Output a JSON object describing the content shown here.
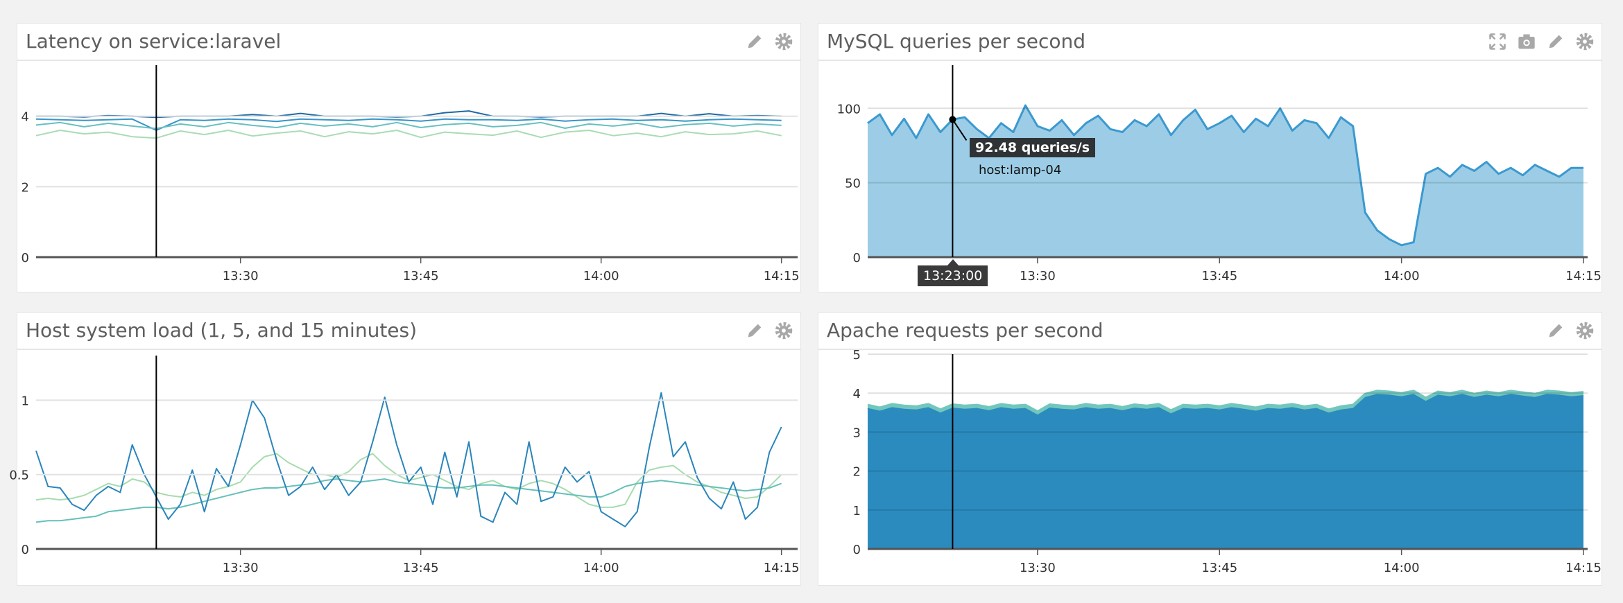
{
  "icons": {
    "edit": "pencil-icon",
    "settings": "gear-icon",
    "fullscreen": "expand-icon",
    "snapshot": "camera-icon"
  },
  "chart_data": [
    {
      "type": "line",
      "title": "Latency on service:laravel",
      "ylim": [
        0,
        5.45
      ],
      "yticks": [
        "0",
        "2",
        "4"
      ],
      "ytick_values": [
        0,
        2,
        4
      ],
      "xlim": [
        "13:13",
        "14:16"
      ],
      "xticks": [
        "13:30",
        "13:45",
        "14:00",
        "14:15"
      ],
      "grid": true,
      "cursor": "13:23",
      "start": "13:13",
      "interval_min": 2,
      "series": [
        {
          "color": "#1d6aa5",
          "values": [
            4.0,
            4.0,
            3.98,
            4.02,
            4.0,
            3.97,
            4.0,
            4.0,
            4.0,
            4.05,
            4.0,
            4.08,
            4.0,
            4.0,
            4.0,
            3.98,
            4.0,
            4.1,
            4.15,
            4.0,
            4.0,
            3.98,
            4.0,
            4.0,
            4.0,
            4.0,
            4.08,
            4.0,
            4.07,
            4.0,
            4.02,
            4.0
          ]
        },
        {
          "color": "#3795c8",
          "values": [
            3.92,
            3.9,
            3.88,
            3.9,
            3.92,
            3.6,
            3.9,
            3.88,
            3.92,
            3.9,
            3.85,
            3.92,
            3.9,
            3.88,
            3.92,
            3.9,
            3.86,
            3.92,
            3.9,
            3.9,
            3.88,
            3.92,
            3.86,
            3.9,
            3.92,
            3.88,
            3.9,
            3.86,
            3.9,
            3.92,
            3.9,
            3.88
          ]
        },
        {
          "color": "#68bfc1",
          "values": [
            3.75,
            3.82,
            3.7,
            3.8,
            3.72,
            3.65,
            3.78,
            3.7,
            3.82,
            3.74,
            3.68,
            3.8,
            3.72,
            3.78,
            3.7,
            3.82,
            3.68,
            3.76,
            3.8,
            3.7,
            3.74,
            3.82,
            3.66,
            3.78,
            3.72,
            3.8,
            3.68,
            3.76,
            3.8,
            3.72,
            3.78,
            3.74
          ]
        },
        {
          "color": "#a9dcb3",
          "values": [
            3.45,
            3.6,
            3.5,
            3.55,
            3.42,
            3.38,
            3.58,
            3.48,
            3.6,
            3.44,
            3.52,
            3.58,
            3.42,
            3.56,
            3.5,
            3.6,
            3.4,
            3.55,
            3.5,
            3.46,
            3.58,
            3.4,
            3.55,
            3.6,
            3.45,
            3.52,
            3.42,
            3.56,
            3.48,
            3.5,
            3.58,
            3.45
          ]
        }
      ]
    },
    {
      "type": "area",
      "title": "MySQL queries per second",
      "ylim": [
        0,
        129
      ],
      "yticks": [
        "0",
        "50",
        "100"
      ],
      "ytick_values": [
        0,
        50,
        100
      ],
      "xlim": [
        "13:16",
        "14:15"
      ],
      "xticks": [
        "13:30",
        "13:45",
        "14:00",
        "14:15"
      ],
      "grid": true,
      "cursor": "13:23",
      "start": "13:16",
      "interval_min": 1,
      "series": [
        {
          "color": "#3b99cf",
          "fill": "#9dcde6",
          "values": [
            90,
            96,
            82,
            93,
            80,
            96,
            84,
            92.48,
            94,
            86,
            80,
            90,
            84,
            102,
            88,
            85,
            92,
            82,
            90,
            95,
            86,
            84,
            92,
            88,
            96,
            82,
            92,
            99,
            86,
            90,
            95,
            84,
            93,
            88,
            100,
            85,
            92,
            90,
            80,
            94,
            88,
            30,
            18,
            12,
            8,
            10,
            56,
            60,
            54,
            62,
            58,
            64,
            56,
            60,
            55,
            62,
            58,
            54,
            60,
            60
          ]
        }
      ],
      "tooltip": {
        "value": "92.48 queries/s",
        "host": "host:lamp-04",
        "time": "13:23:00",
        "at": "13:23",
        "y": 92.48
      }
    },
    {
      "type": "line",
      "title": "Host system load (1, 5, and 15 minutes)",
      "ylim": [
        0,
        1.3
      ],
      "yticks": [
        "0",
        "0.5",
        "1"
      ],
      "ytick_values": [
        0,
        0.5,
        1
      ],
      "xlim": [
        "13:13",
        "14:16"
      ],
      "xticks": [
        "13:30",
        "13:45",
        "14:00",
        "14:15"
      ],
      "grid": true,
      "cursor": "13:23",
      "start": "13:13",
      "interval_min": 1,
      "series": [
        {
          "color": "#a6dcae",
          "values": [
            0.33,
            0.34,
            0.33,
            0.34,
            0.36,
            0.4,
            0.44,
            0.42,
            0.47,
            0.45,
            0.38,
            0.36,
            0.35,
            0.38,
            0.36,
            0.4,
            0.42,
            0.45,
            0.55,
            0.62,
            0.64,
            0.58,
            0.54,
            0.5,
            0.5,
            0.48,
            0.52,
            0.6,
            0.64,
            0.56,
            0.5,
            0.46,
            0.48,
            0.5,
            0.46,
            0.42,
            0.4,
            0.44,
            0.46,
            0.42,
            0.4,
            0.44,
            0.46,
            0.44,
            0.4,
            0.35,
            0.3,
            0.28,
            0.28,
            0.3,
            0.45,
            0.53,
            0.55,
            0.56,
            0.5,
            0.45,
            0.42,
            0.38,
            0.36,
            0.34,
            0.35,
            0.42,
            0.5
          ]
        },
        {
          "color": "#66c0ba",
          "values": [
            0.18,
            0.19,
            0.19,
            0.2,
            0.21,
            0.22,
            0.25,
            0.26,
            0.27,
            0.28,
            0.28,
            0.27,
            0.28,
            0.3,
            0.32,
            0.34,
            0.36,
            0.38,
            0.4,
            0.41,
            0.41,
            0.42,
            0.43,
            0.44,
            0.46,
            0.47,
            0.46,
            0.45,
            0.46,
            0.47,
            0.45,
            0.44,
            0.43,
            0.42,
            0.41,
            0.41,
            0.42,
            0.43,
            0.43,
            0.42,
            0.41,
            0.4,
            0.39,
            0.38,
            0.37,
            0.36,
            0.35,
            0.35,
            0.38,
            0.42,
            0.44,
            0.45,
            0.46,
            0.45,
            0.44,
            0.43,
            0.42,
            0.41,
            0.4,
            0.39,
            0.4,
            0.41,
            0.44
          ]
        },
        {
          "color": "#2a85bb",
          "values": [
            0.66,
            0.42,
            0.41,
            0.3,
            0.26,
            0.36,
            0.42,
            0.38,
            0.7,
            0.5,
            0.35,
            0.2,
            0.3,
            0.53,
            0.25,
            0.54,
            0.42,
            0.7,
            1.0,
            0.88,
            0.6,
            0.36,
            0.42,
            0.55,
            0.4,
            0.5,
            0.36,
            0.45,
            0.72,
            1.02,
            0.7,
            0.45,
            0.55,
            0.3,
            0.65,
            0.35,
            0.72,
            0.22,
            0.18,
            0.38,
            0.3,
            0.72,
            0.32,
            0.35,
            0.55,
            0.45,
            0.52,
            0.25,
            0.2,
            0.15,
            0.25,
            0.68,
            1.05,
            0.62,
            0.72,
            0.48,
            0.34,
            0.27,
            0.45,
            0.2,
            0.28,
            0.65,
            0.82
          ]
        }
      ]
    },
    {
      "type": "area",
      "stacked": true,
      "title": "Apache requests per second",
      "ylim": [
        0,
        5
      ],
      "yticks": [
        "0",
        "1",
        "2",
        "3",
        "4",
        "5"
      ],
      "ytick_values": [
        0,
        1,
        2,
        3,
        4,
        5
      ],
      "xlim": [
        "13:16",
        "14:15"
      ],
      "xticks": [
        "13:30",
        "13:45",
        "14:00",
        "14:15"
      ],
      "grid": true,
      "cursor": "13:23",
      "start": "13:16",
      "interval_min": 1,
      "series": [
        {
          "color": "#2b8bbf",
          "fill": "#2b8bbf",
          "values": [
            3.62,
            3.55,
            3.64,
            3.6,
            3.58,
            3.64,
            3.5,
            3.63,
            3.6,
            3.62,
            3.56,
            3.64,
            3.6,
            3.62,
            3.45,
            3.63,
            3.6,
            3.58,
            3.64,
            3.6,
            3.62,
            3.56,
            3.63,
            3.6,
            3.64,
            3.48,
            3.62,
            3.6,
            3.62,
            3.58,
            3.64,
            3.6,
            3.55,
            3.62,
            3.6,
            3.64,
            3.58,
            3.62,
            3.5,
            3.58,
            3.62,
            3.9,
            3.98,
            3.96,
            3.92,
            3.98,
            3.8,
            3.96,
            3.92,
            3.98,
            3.9,
            3.96,
            3.92,
            3.98,
            3.94,
            3.9,
            3.98,
            3.96,
            3.92,
            3.95
          ]
        },
        {
          "color": "#72c7bd",
          "fill": "#72c7bd",
          "values": [
            0.08,
            0.08,
            0.08,
            0.08,
            0.08,
            0.08,
            0.08,
            0.08,
            0.08,
            0.08,
            0.08,
            0.08,
            0.08,
            0.08,
            0.08,
            0.08,
            0.08,
            0.08,
            0.08,
            0.08,
            0.08,
            0.08,
            0.08,
            0.08,
            0.08,
            0.08,
            0.08,
            0.08,
            0.08,
            0.08,
            0.08,
            0.08,
            0.08,
            0.08,
            0.08,
            0.08,
            0.08,
            0.08,
            0.08,
            0.08,
            0.08,
            0.08,
            0.08,
            0.08,
            0.08,
            0.08,
            0.08,
            0.08,
            0.08,
            0.08,
            0.08,
            0.08,
            0.08,
            0.08,
            0.08,
            0.08,
            0.08,
            0.08,
            0.08,
            0.08
          ]
        }
      ]
    }
  ]
}
